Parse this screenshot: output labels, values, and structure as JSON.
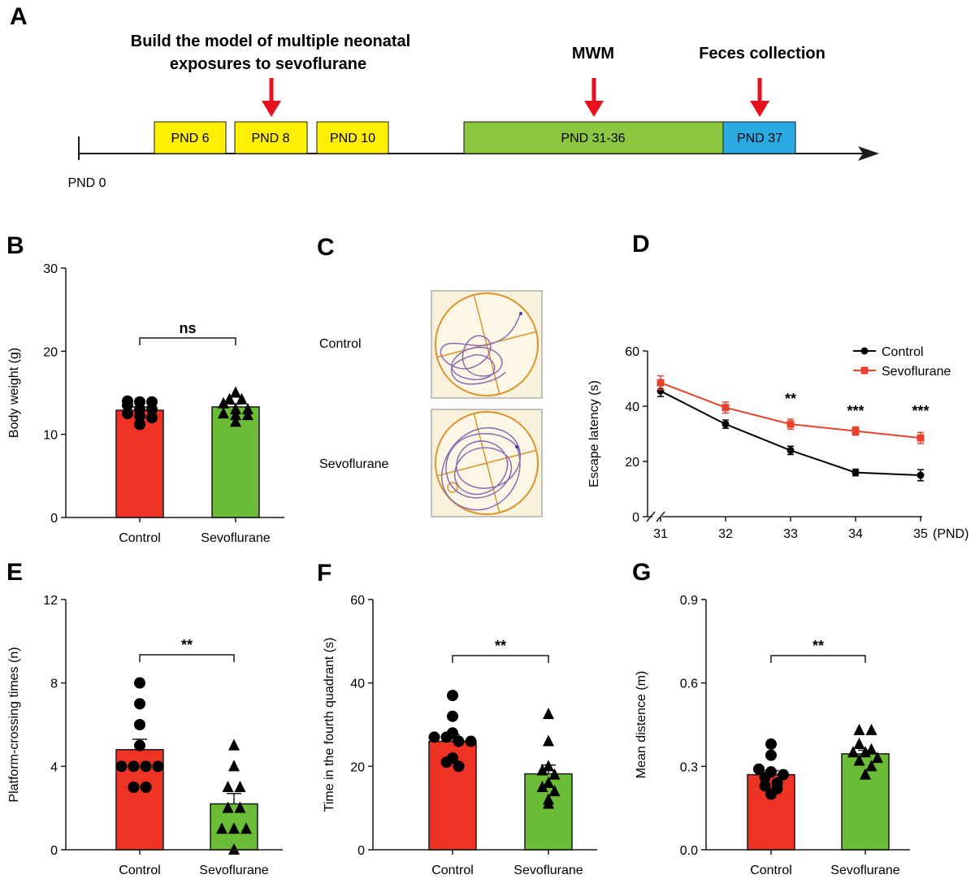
{
  "panels": {
    "A": {
      "label": "A",
      "header_model_line1": "Build the model of multiple neonatal",
      "header_model_line2": "exposures to sevoflurane",
      "header_mwm": "MWM",
      "header_feces": "Feces collection",
      "start_label": "PND 0",
      "boxes": [
        {
          "label": "PND 6",
          "color": "#ffef00"
        },
        {
          "label": "PND 8",
          "color": "#ffef00"
        },
        {
          "label": "PND 10",
          "color": "#ffef00"
        },
        {
          "label": "PND 31-36",
          "color": "#8dc63f"
        },
        {
          "label": "PND 37",
          "color": "#29abe2"
        }
      ],
      "arrow_color": "#e6101e"
    },
    "B": {
      "label": "B"
    },
    "C": {
      "label": "C",
      "row1": "Control",
      "row2": "Sevoflurane"
    },
    "D": {
      "label": "D"
    },
    "E": {
      "label": "E"
    },
    "F": {
      "label": "F"
    },
    "G": {
      "label": "G"
    }
  },
  "colors": {
    "control": "#ee3223",
    "sevoflurane": "#6bbd37",
    "line_sevo": "#e8412c",
    "track": "#8e6bb0",
    "pool": "#f8f1dc",
    "pool_edge": "#d9952b"
  },
  "chart_data": [
    {
      "panel": "B",
      "type": "bar",
      "categories": [
        "Control",
        "Sevoflurane"
      ],
      "values": [
        12.9,
        13.3
      ],
      "sem": [
        0.4,
        0.35
      ],
      "points": [
        [
          14,
          13.9,
          13.9,
          13.5,
          13,
          13,
          12.5,
          12.2,
          12,
          11.2
        ],
        [
          15,
          14.2,
          14.2,
          13.7,
          13,
          13,
          12.5,
          12.3,
          12.3,
          11.5
        ]
      ],
      "markers": [
        "circle",
        "triangle"
      ],
      "ylabel": "Body weight (g)",
      "ylim": [
        0,
        30
      ],
      "yticks": [
        0,
        10,
        20,
        30
      ],
      "significance": "ns"
    },
    {
      "panel": "D",
      "type": "line",
      "x": [
        31,
        32,
        33,
        34,
        35
      ],
      "xticks": [
        "31",
        "32",
        "33",
        "34",
        "35"
      ],
      "x_unit": "(PND)",
      "series": [
        {
          "name": "Control",
          "values": [
            45.5,
            33.5,
            24,
            16,
            15
          ],
          "err": [
            2,
            1.5,
            1.5,
            1.2,
            2
          ]
        },
        {
          "name": "Sevoflurane",
          "values": [
            48.5,
            39.5,
            33.5,
            31,
            28.5
          ],
          "err": [
            2.5,
            2,
            1.8,
            1.5,
            2
          ]
        }
      ],
      "significance": [
        {
          "x": 33,
          "text": "**"
        },
        {
          "x": 34,
          "text": "***"
        },
        {
          "x": 35,
          "text": "***"
        }
      ],
      "ylabel": "Escape latency (s)",
      "ylim": [
        0,
        60
      ],
      "yticks": [
        0,
        20,
        40,
        60
      ]
    },
    {
      "panel": "E",
      "type": "bar",
      "categories": [
        "Control",
        "Sevoflurane"
      ],
      "values": [
        4.8,
        2.2
      ],
      "sem": [
        0.5,
        0.5
      ],
      "points": [
        [
          8,
          7,
          6,
          5,
          4,
          4,
          4,
          4,
          3,
          3
        ],
        [
          5,
          4,
          3,
          3,
          2,
          2,
          1,
          1,
          1,
          0
        ]
      ],
      "markers": [
        "circle",
        "triangle"
      ],
      "ylabel": "Platform-crossing times (n)",
      "ylim": [
        0,
        12
      ],
      "yticks": [
        0,
        4,
        8,
        12
      ],
      "significance": "**"
    },
    {
      "panel": "F",
      "type": "bar",
      "categories": [
        "Control",
        "Sevoflurane"
      ],
      "values": [
        26,
        18.2
      ],
      "sem": [
        1.6,
        2.1
      ],
      "points": [
        [
          37,
          32,
          28,
          27,
          27,
          26,
          26,
          22,
          21,
          20
        ],
        [
          32.5,
          26,
          20,
          19,
          18,
          16,
          15,
          14,
          12,
          11
        ]
      ],
      "markers": [
        "circle",
        "triangle"
      ],
      "ylabel": "Time in the fourth quadrant (s)",
      "ylim": [
        0,
        60
      ],
      "yticks": [
        0,
        20,
        40,
        60
      ],
      "significance": "**"
    },
    {
      "panel": "G",
      "type": "bar",
      "categories": [
        "Control",
        "Sevoflurane"
      ],
      "values": [
        0.27,
        0.345
      ],
      "sem": [
        0.015,
        0.013
      ],
      "points": [
        [
          0.38,
          0.34,
          0.29,
          0.28,
          0.27,
          0.26,
          0.24,
          0.23,
          0.22,
          0.2
        ],
        [
          0.43,
          0.43,
          0.38,
          0.36,
          0.35,
          0.35,
          0.33,
          0.32,
          0.3,
          0.27
        ]
      ],
      "markers": [
        "circle",
        "triangle"
      ],
      "ylabel": "Mean distence (m)",
      "ylim": [
        0,
        0.9
      ],
      "yticks": [
        "0.0",
        "0.3",
        "0.6",
        "0.9"
      ],
      "significance": "**"
    }
  ]
}
